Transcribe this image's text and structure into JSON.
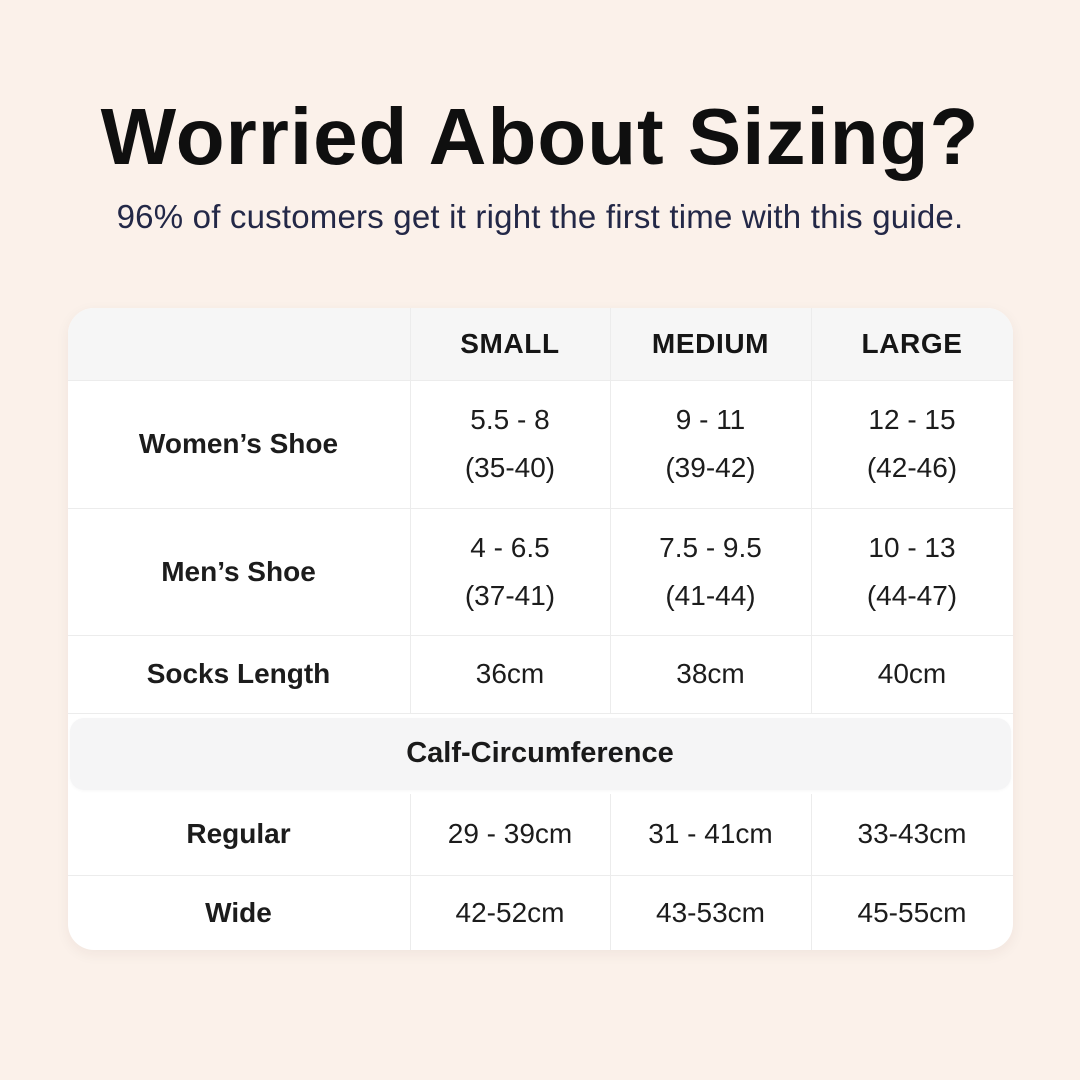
{
  "page": {
    "background_color": "#fbf1ea",
    "title": "Worried About Sizing?",
    "subtitle": "96% of customers get it right the first time with this guide.",
    "title_color": "#0f0f0f",
    "subtitle_color": "#232847"
  },
  "table": {
    "accent_header_bg": "#f6f6f6",
    "body_bg": "#ffffff",
    "border_color": "#ececec",
    "columns": {
      "label": "",
      "small": "SMALL",
      "medium": "MEDIUM",
      "large": "LARGE"
    },
    "rows": [
      {
        "label": "Women’s Shoe",
        "cells": [
          {
            "l1": "5.5 - 8",
            "l2": "(35-40)"
          },
          {
            "l1": "9 - 11",
            "l2": "(39-42)"
          },
          {
            "l1": "12 - 15",
            "l2": "(42-46)"
          }
        ]
      },
      {
        "label": "Men’s Shoe",
        "cells": [
          {
            "l1": "4 - 6.5",
            "l2": "(37-41)"
          },
          {
            "l1": "7.5 - 9.5",
            "l2": "(41-44)"
          },
          {
            "l1": "10 - 13",
            "l2": "(44-47)"
          }
        ]
      },
      {
        "label": "Socks Length",
        "cells": [
          {
            "l1": "36cm"
          },
          {
            "l1": "38cm"
          },
          {
            "l1": "40cm"
          }
        ]
      }
    ],
    "section_header": "Calf-Circumference",
    "section_rows": [
      {
        "label": "Regular",
        "cells": [
          {
            "l1": "29 - 39cm"
          },
          {
            "l1": "31 - 41cm"
          },
          {
            "l1": "33-43cm"
          }
        ]
      },
      {
        "label": "Wide",
        "cells": [
          {
            "l1": "42-52cm"
          },
          {
            "l1": "43-53cm"
          },
          {
            "l1": "45-55cm"
          }
        ]
      }
    ]
  }
}
